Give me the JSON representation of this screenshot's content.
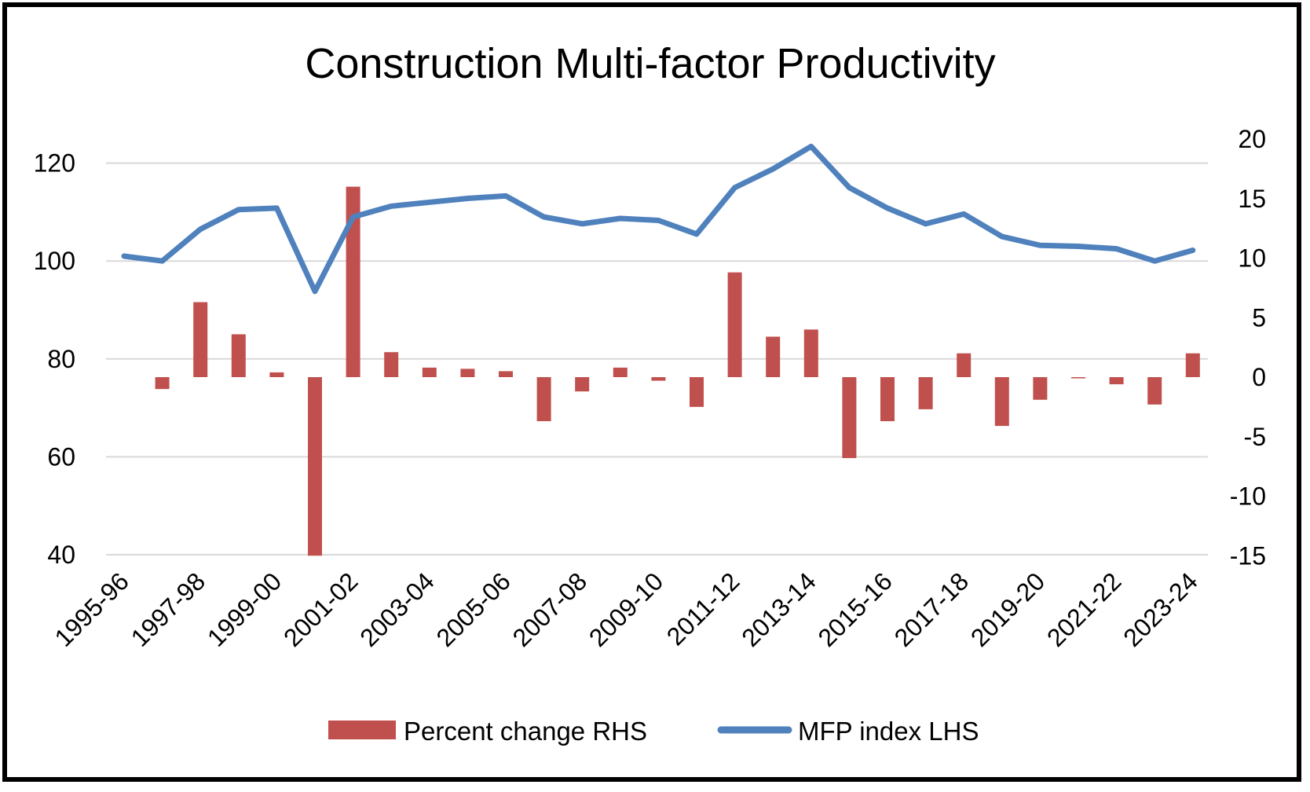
{
  "colors": {
    "bars": "#C0504D",
    "line": "#4F81BD",
    "grid": "#D9D9D9",
    "frame": "#000000"
  },
  "chart_data": {
    "type": "bar+line",
    "title": "Construction Multi-factor Productivity",
    "categories": [
      "1995-96",
      "1996-97",
      "1997-98",
      "1998-99",
      "1999-00",
      "2000-01",
      "2001-02",
      "2002-03",
      "2003-04",
      "2004-05",
      "2005-06",
      "2006-07",
      "2007-08",
      "2008-09",
      "2009-10",
      "2010-11",
      "2011-12",
      "2012-13",
      "2013-14",
      "2014-15",
      "2015-16",
      "2016-17",
      "2017-18",
      "2018-19",
      "2019-20",
      "2020-21",
      "2021-22",
      "2022-23",
      "2023-24"
    ],
    "x_tick_labels": [
      "1995-96",
      "1997-98",
      "1999-00",
      "2001-02",
      "2003-04",
      "2005-06",
      "2007-08",
      "2009-10",
      "2011-12",
      "2013-14",
      "2015-16",
      "2017-18",
      "2019-20",
      "2021-22",
      "2023-24"
    ],
    "left_axis": {
      "ylim": [
        40,
        125
      ],
      "ticks": [
        40,
        60,
        80,
        100,
        120
      ]
    },
    "right_axis": {
      "ylim": [
        -15,
        20
      ],
      "ticks": [
        -15,
        -10,
        -5,
        0,
        5,
        10,
        15,
        20
      ]
    },
    "grid": true,
    "legend_position": "bottom",
    "series": [
      {
        "name": "Percent change RHS",
        "type": "bar",
        "axis": "right",
        "values": [
          0,
          -1.0,
          6.3,
          3.6,
          0.4,
          -15.0,
          16.0,
          2.1,
          0.8,
          0.7,
          0.5,
          -3.7,
          -1.2,
          0.8,
          -0.3,
          -2.5,
          8.8,
          3.4,
          4.0,
          -6.8,
          -3.7,
          -2.7,
          2.0,
          -4.1,
          -1.9,
          -0.1,
          -0.6,
          -2.3,
          2.0
        ]
      },
      {
        "name": "MFP index LHS",
        "type": "line",
        "axis": "left",
        "values": [
          101.0,
          100.0,
          106.5,
          110.5,
          110.8,
          93.8,
          109.0,
          111.2,
          112.0,
          112.8,
          113.3,
          109.0,
          107.6,
          108.7,
          108.3,
          105.5,
          115.0,
          118.8,
          123.4,
          115.0,
          110.8,
          107.6,
          109.6,
          105.0,
          103.2,
          103.0,
          102.5,
          100.0,
          102.2
        ]
      }
    ]
  }
}
